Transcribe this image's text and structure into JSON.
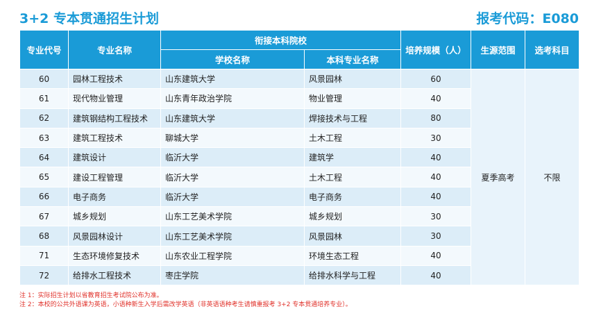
{
  "header": {
    "title": "3+2 专本贯通招生计划",
    "exam_code": "报考代码：E080"
  },
  "columns": {
    "major_code": "专业代号",
    "major_name": "专业名称",
    "linked_undergrad": "衔接本科院校",
    "school_name": "学校名称",
    "undergrad_major": "本科专业名称",
    "scale": "培养规模（人）",
    "source": "生源范围",
    "subjects": "选考科目"
  },
  "rows": [
    {
      "code": "60",
      "name": "园林工程技术",
      "school": "山东建筑大学",
      "ug_major": "风景园林",
      "scale": "60"
    },
    {
      "code": "61",
      "name": "现代物业管理",
      "school": "山东青年政治学院",
      "ug_major": "物业管理",
      "scale": "40"
    },
    {
      "code": "62",
      "name": "建筑钢结构工程技术",
      "school": "山东建筑大学",
      "ug_major": "焊接技术与工程",
      "scale": "80"
    },
    {
      "code": "63",
      "name": "建筑工程技术",
      "school": "聊城大学",
      "ug_major": "土木工程",
      "scale": "30"
    },
    {
      "code": "64",
      "name": "建筑设计",
      "school": "临沂大学",
      "ug_major": "建筑学",
      "scale": "40"
    },
    {
      "code": "65",
      "name": "建设工程管理",
      "school": "临沂大学",
      "ug_major": "土木工程",
      "scale": "40"
    },
    {
      "code": "66",
      "name": "电子商务",
      "school": "临沂大学",
      "ug_major": "电子商务",
      "scale": "40"
    },
    {
      "code": "67",
      "name": "城乡规划",
      "school": "山东工艺美术学院",
      "ug_major": "城乡规划",
      "scale": "30"
    },
    {
      "code": "68",
      "name": "风景园林设计",
      "school": "山东工艺美术学院",
      "ug_major": "风景园林",
      "scale": "30"
    },
    {
      "code": "71",
      "name": "生态环境修复技术",
      "school": "山东农业工程学院",
      "ug_major": "环境生态工程",
      "scale": "40"
    },
    {
      "code": "72",
      "name": "给排水工程技术",
      "school": "枣庄学院",
      "ug_major": "给排水科学与工程",
      "scale": "40"
    }
  ],
  "merged": {
    "source": "夏季高考",
    "subjects": "不限"
  },
  "notes": [
    "注 1：实际招生计划以省教育招生考试院公布为准。",
    "注 2：本校的公共外语课为英语，小语种新生入学后需改学英语（非英语语种考生请慎重报考 3+2 专本贯通培养专业）。"
  ]
}
